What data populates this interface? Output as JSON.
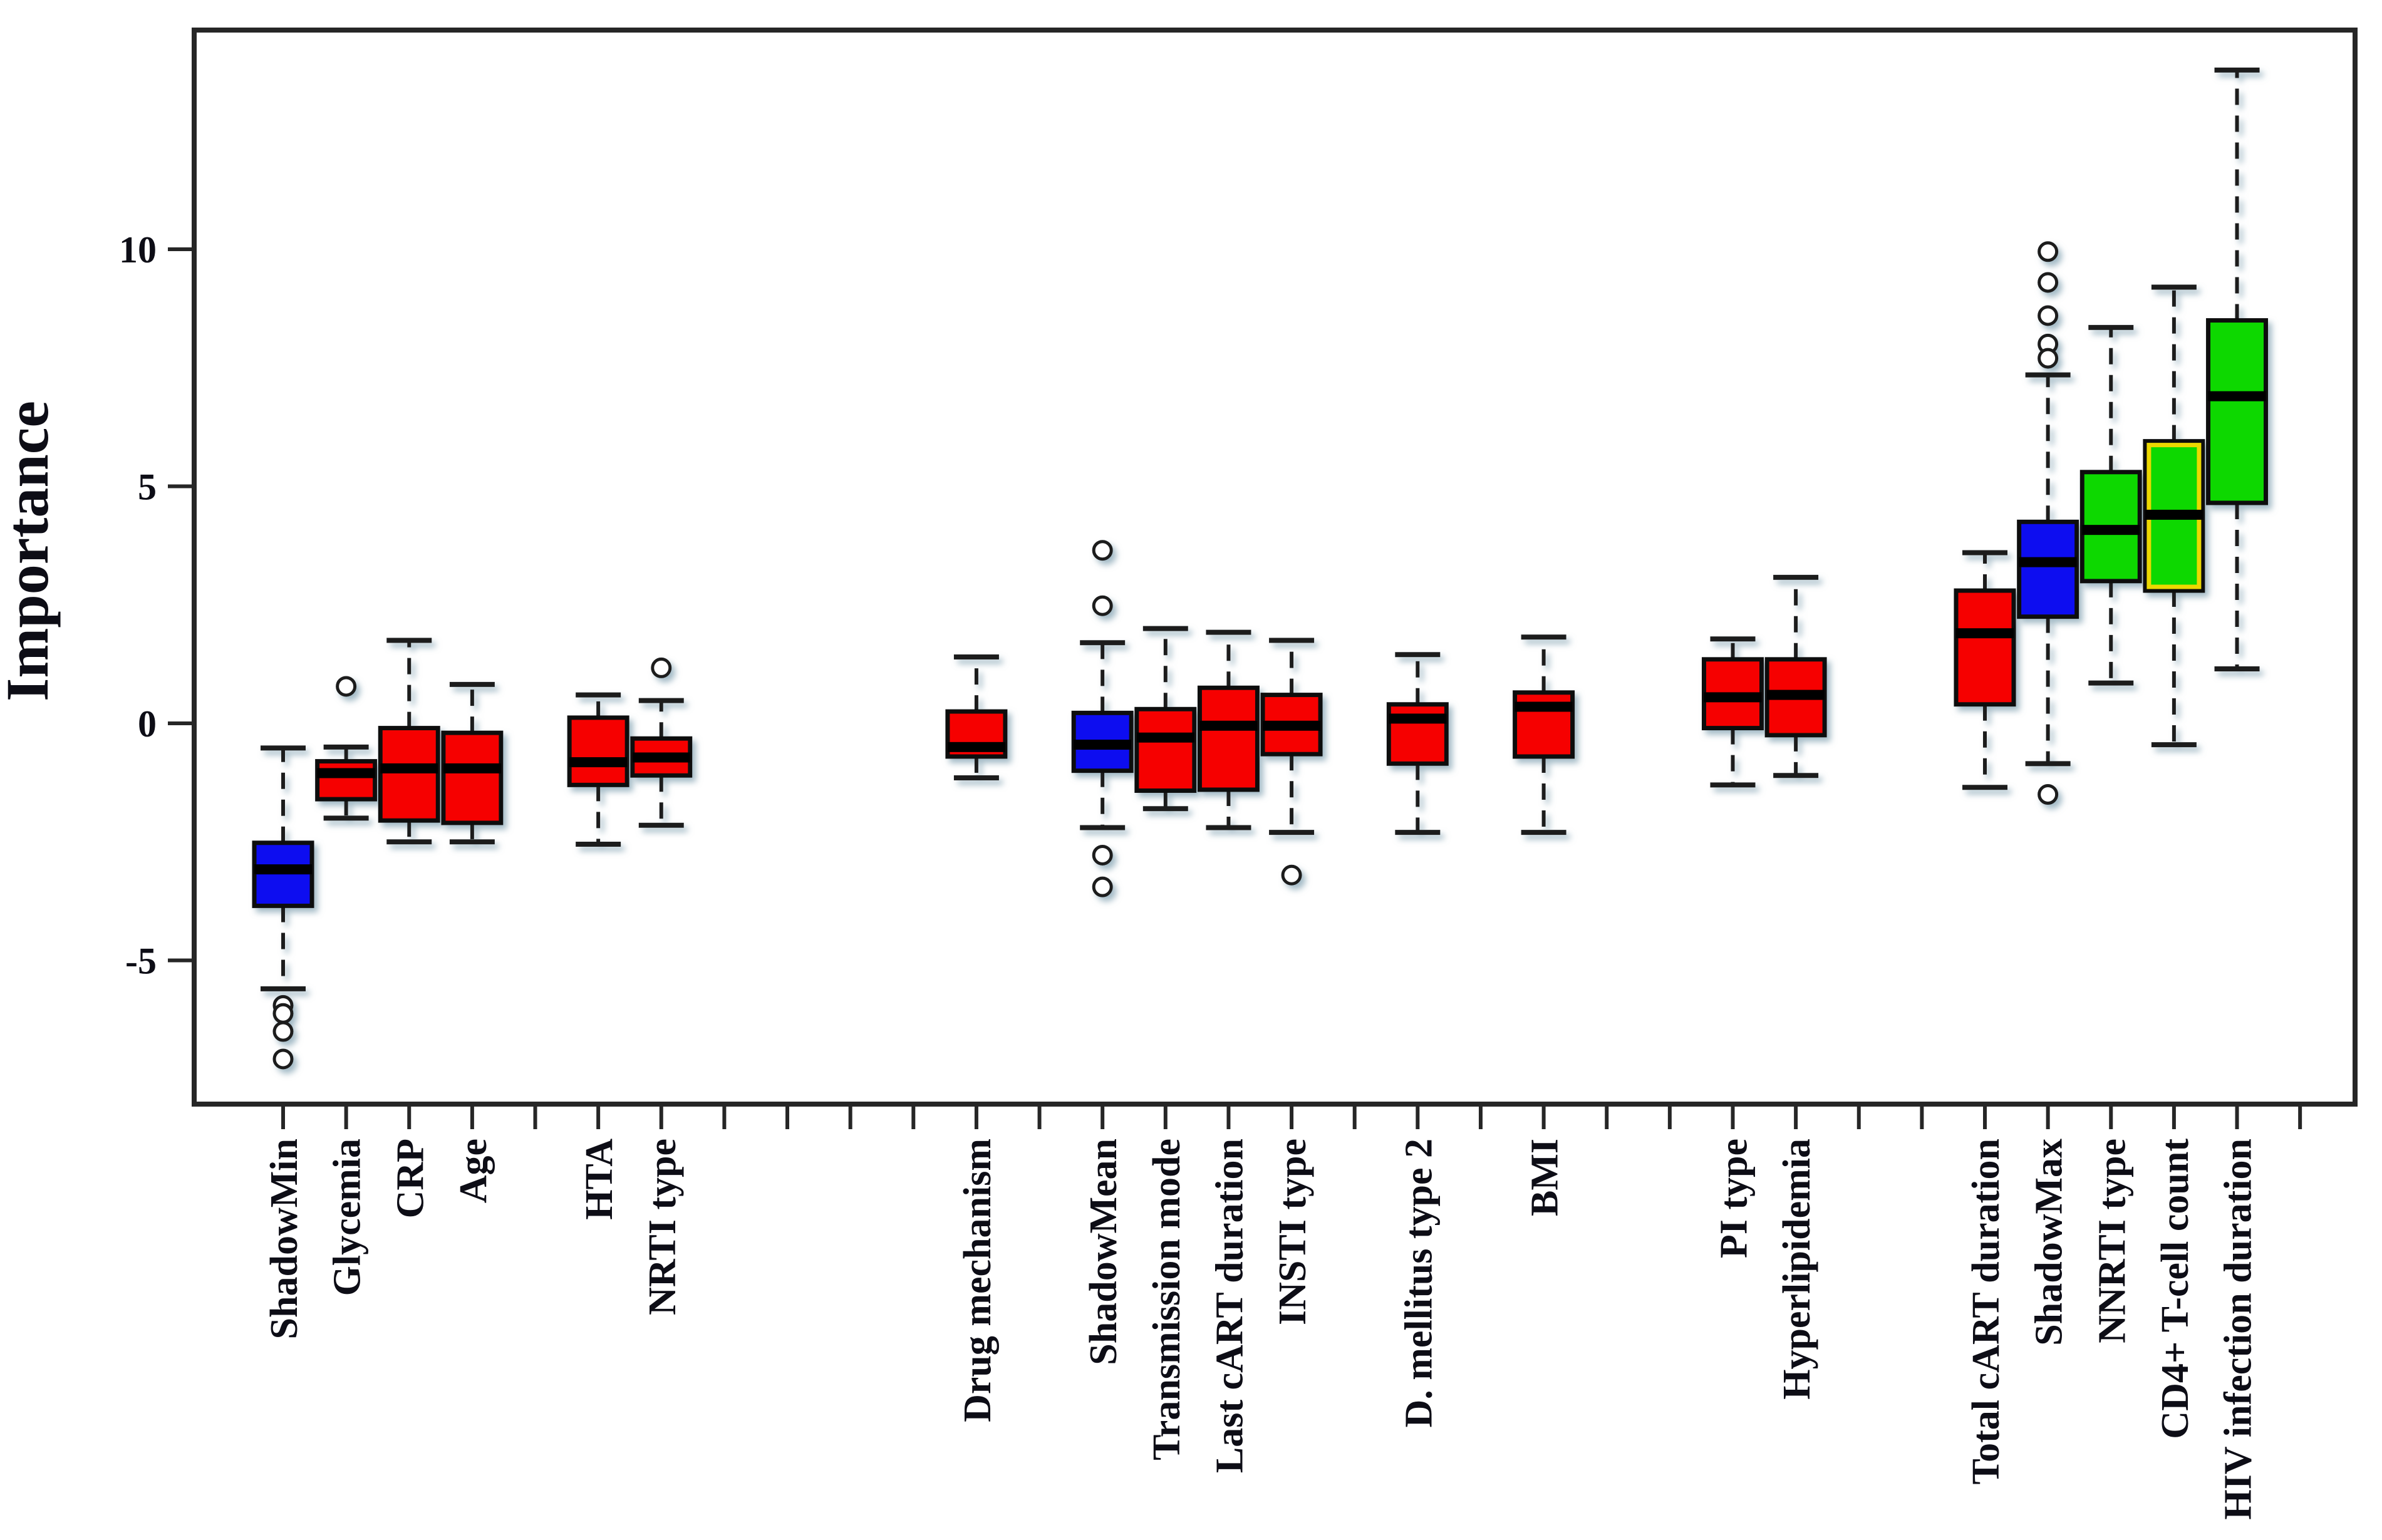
{
  "chart_data": {
    "type": "boxplot",
    "title": "",
    "ylabel": "Importance",
    "xlabel": "",
    "y_ticks": [
      10,
      5,
      0,
      -5
    ],
    "ylim": [
      -8.0,
      14.7
    ],
    "grid": false,
    "legend": "none",
    "n_positions": 33,
    "colors": {
      "rejected": "#f60604",
      "shadow": "#0a0af0",
      "confirmed": "#0ad806",
      "cd4_inner_border": "#ecd800",
      "box_border": "#101010",
      "whisker": "#1c1c1c",
      "axis": "#262626",
      "halo": "#93aebc",
      "outlier_ring": "#1c1c1c"
    },
    "series": [
      {
        "label": "ShadowMin",
        "position": 1,
        "color_key": "shadow",
        "whisker_low": -5.6,
        "q1": -3.85,
        "median": -3.08,
        "q3": -2.52,
        "whisker_high": -0.52,
        "outliers_high": [],
        "outliers_low": [
          -5.95,
          -6.12,
          -6.5,
          -7.08
        ]
      },
      {
        "label": "Glycemia",
        "position": 2,
        "color_key": "rejected",
        "whisker_low": -2.0,
        "q1": -1.6,
        "median": -1.05,
        "q3": -0.8,
        "whisker_high": -0.5,
        "outliers_high": [
          0.78
        ],
        "outliers_low": []
      },
      {
        "label": "CRP",
        "position": 3,
        "color_key": "rejected",
        "whisker_low": -2.5,
        "q1": -2.05,
        "median": -0.95,
        "q3": -0.1,
        "whisker_high": 1.75,
        "outliers_high": [],
        "outliers_low": []
      },
      {
        "label": "Age",
        "position": 4,
        "color_key": "rejected",
        "whisker_low": -2.5,
        "q1": -2.1,
        "median": -0.95,
        "q3": -0.2,
        "whisker_high": 0.82,
        "outliers_high": [],
        "outliers_low": []
      },
      {
        "label": "HTA",
        "position": 6,
        "color_key": "rejected",
        "whisker_low": -2.55,
        "q1": -1.3,
        "median": -0.82,
        "q3": 0.12,
        "whisker_high": 0.6,
        "outliers_high": [],
        "outliers_low": []
      },
      {
        "label": "NRTI type",
        "position": 7,
        "color_key": "rejected",
        "whisker_low": -2.15,
        "q1": -1.1,
        "median": -0.72,
        "q3": -0.32,
        "whisker_high": 0.48,
        "outliers_high": [
          1.17
        ],
        "outliers_low": []
      },
      {
        "label": "Drug mechanism",
        "position": 12,
        "color_key": "rejected",
        "whisker_low": -1.15,
        "q1": -0.7,
        "median": -0.5,
        "q3": 0.25,
        "whisker_high": 1.4,
        "outliers_high": [],
        "outliers_low": []
      },
      {
        "label": "ShadowMean",
        "position": 14,
        "color_key": "shadow",
        "whisker_low": -2.2,
        "q1": -1.0,
        "median": -0.45,
        "q3": 0.22,
        "whisker_high": 1.7,
        "outliers_high": [
          3.65,
          2.48
        ],
        "outliers_low": [
          -2.78,
          -3.45
        ]
      },
      {
        "label": "Transmission mode",
        "position": 15,
        "color_key": "rejected",
        "whisker_low": -1.8,
        "q1": -1.42,
        "median": -0.3,
        "q3": 0.3,
        "whisker_high": 2.0,
        "outliers_high": [],
        "outliers_low": []
      },
      {
        "label": "Last cART duration",
        "position": 16,
        "color_key": "rejected",
        "whisker_low": -2.2,
        "q1": -1.4,
        "median": -0.05,
        "q3": 0.75,
        "whisker_high": 1.92,
        "outliers_high": [],
        "outliers_low": []
      },
      {
        "label": "INSTI type",
        "position": 17,
        "color_key": "rejected",
        "whisker_low": -2.3,
        "q1": -0.65,
        "median": -0.05,
        "q3": 0.6,
        "whisker_high": 1.75,
        "outliers_high": [],
        "outliers_low": [
          -3.2
        ]
      },
      {
        "label": "D. mellitus type 2",
        "position": 19,
        "color_key": "rejected",
        "whisker_low": -2.3,
        "q1": -0.85,
        "median": 0.1,
        "q3": 0.4,
        "whisker_high": 1.45,
        "outliers_high": [],
        "outliers_low": []
      },
      {
        "label": "BMI",
        "position": 21,
        "color_key": "rejected",
        "whisker_low": -2.3,
        "q1": -0.7,
        "median": 0.35,
        "q3": 0.65,
        "whisker_high": 1.82,
        "outliers_high": [],
        "outliers_low": []
      },
      {
        "label": "PI type",
        "position": 24,
        "color_key": "rejected",
        "whisker_low": -1.3,
        "q1": -0.1,
        "median": 0.55,
        "q3": 1.35,
        "whisker_high": 1.78,
        "outliers_high": [],
        "outliers_low": []
      },
      {
        "label": "Hyperlipidemia",
        "position": 25,
        "color_key": "rejected",
        "whisker_low": -1.1,
        "q1": -0.25,
        "median": 0.6,
        "q3": 1.35,
        "whisker_high": 3.08,
        "outliers_high": [],
        "outliers_low": []
      },
      {
        "label": "Total cART duration",
        "position": 28,
        "color_key": "rejected",
        "whisker_low": -1.35,
        "q1": 0.4,
        "median": 1.9,
        "q3": 2.8,
        "whisker_high": 3.6,
        "outliers_high": [],
        "outliers_low": []
      },
      {
        "label": "ShadowMax",
        "position": 29,
        "color_key": "shadow",
        "whisker_low": -0.85,
        "q1": 2.25,
        "median": 3.4,
        "q3": 4.25,
        "whisker_high": 7.35,
        "outliers_high": [
          9.95,
          9.3,
          8.6,
          8.0,
          7.7
        ],
        "outliers_low": [
          -1.5
        ]
      },
      {
        "label": "NNRTI type",
        "position": 30,
        "color_key": "confirmed",
        "whisker_low": 0.85,
        "q1": 3.0,
        "median": 4.08,
        "q3": 5.3,
        "whisker_high": 8.35,
        "outliers_high": [],
        "outliers_low": []
      },
      {
        "label": "CD4+ T-cell count",
        "position": 31,
        "color_key": "confirmed",
        "inner_border": "cd4_inner_border",
        "whisker_low": -0.45,
        "q1": 2.8,
        "median": 4.4,
        "q3": 5.95,
        "whisker_high": 9.2,
        "outliers_high": [],
        "outliers_low": []
      },
      {
        "label": "HIV infection duration",
        "position": 32,
        "color_key": "confirmed",
        "whisker_low": 1.15,
        "q1": 4.65,
        "median": 6.9,
        "q3": 8.5,
        "whisker_high": 13.78,
        "outliers_high": [],
        "outliers_low": []
      }
    ]
  }
}
